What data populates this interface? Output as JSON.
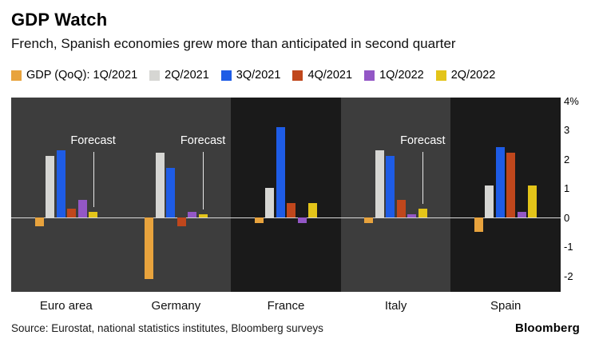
{
  "header": {
    "title": "GDP Watch",
    "subtitle": "French, Spanish economies grew more than anticipated in second quarter"
  },
  "legend": {
    "prefix": "GDP (QoQ): "
  },
  "chart_data": {
    "type": "bar",
    "categories": [
      "Euro area",
      "Germany",
      "France",
      "Italy",
      "Spain"
    ],
    "series": [
      {
        "name": "1Q/2021",
        "color": "#E8A33D",
        "values": [
          -0.3,
          -2.1,
          -0.2,
          -0.2,
          -0.5
        ]
      },
      {
        "name": "2Q/2021",
        "color": "#D6D6D3",
        "values": [
          2.1,
          2.2,
          1.0,
          2.3,
          1.1
        ]
      },
      {
        "name": "3Q/2021",
        "color": "#1E5CE6",
        "values": [
          2.3,
          1.7,
          3.1,
          2.1,
          2.4
        ]
      },
      {
        "name": "4Q/2021",
        "color": "#C0471C",
        "values": [
          0.3,
          -0.3,
          0.5,
          0.6,
          2.2
        ]
      },
      {
        "name": "1Q/2022",
        "color": "#9357C6",
        "values": [
          0.6,
          0.2,
          -0.2,
          0.1,
          0.2
        ]
      },
      {
        "name": "2Q/2022",
        "color": "#E3C419",
        "values": [
          0.2,
          0.1,
          0.5,
          0.3,
          1.1
        ]
      }
    ],
    "ylim": [
      -2.55,
      4.1
    ],
    "yticks": [
      {
        "v": 4,
        "label": "4%"
      },
      {
        "v": 3,
        "label": "3"
      },
      {
        "v": 2,
        "label": "2"
      },
      {
        "v": 1,
        "label": "1"
      },
      {
        "v": 0,
        "label": "0"
      },
      {
        "v": -1,
        "label": "-1"
      },
      {
        "v": -2,
        "label": "-2"
      }
    ],
    "forecast": {
      "label": "Forecast",
      "panels": [
        {
          "from": 0,
          "to": 1
        },
        {
          "from": 3,
          "to": 3
        }
      ],
      "annotated_groups": [
        0,
        1,
        3
      ]
    },
    "grid": false,
    "legend_position": "top",
    "title": "GDP Watch",
    "xlabel": "",
    "ylabel": ""
  },
  "footer": {
    "source": "Source: Eurostat, national statistics institutes, Bloomberg surveys",
    "logo": "Bloomberg"
  },
  "colors": {
    "plot_bg": "#1A1A1A",
    "forecast_panel_bg": "#3D3D3D",
    "zero_line": "#D9D9D9",
    "page_bg": "#FFFFFF"
  }
}
